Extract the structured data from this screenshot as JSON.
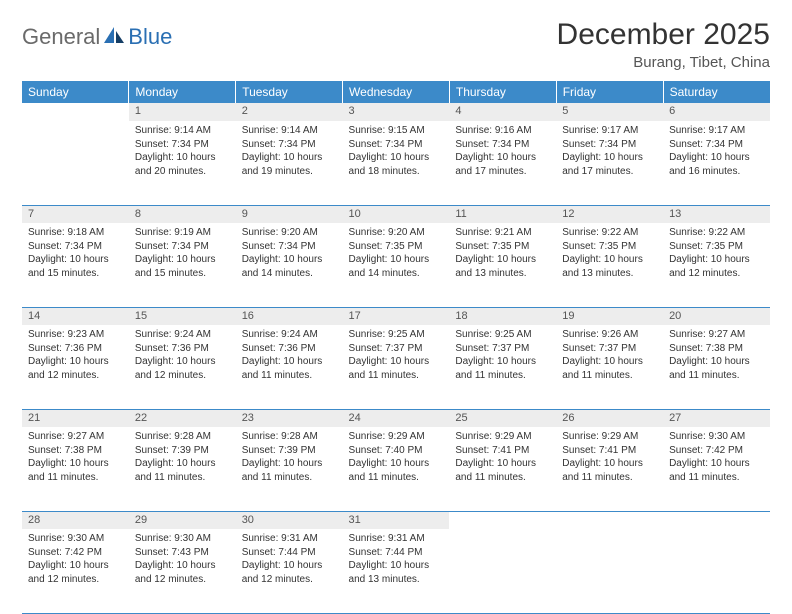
{
  "logo": {
    "part1": "General",
    "part2": "Blue"
  },
  "title": "December 2025",
  "location": "Burang, Tibet, China",
  "colors": {
    "header_bg": "#3c8ac9",
    "daynum_bg": "#ededed",
    "rule": "#3c8ac9",
    "logo_gray": "#6a6a6a",
    "logo_blue": "#2a6fb3"
  },
  "weekdays": [
    "Sunday",
    "Monday",
    "Tuesday",
    "Wednesday",
    "Thursday",
    "Friday",
    "Saturday"
  ],
  "weeks": [
    [
      null,
      {
        "n": "1",
        "sr": "9:14 AM",
        "ss": "7:34 PM",
        "dl": "10 hours and 20 minutes."
      },
      {
        "n": "2",
        "sr": "9:14 AM",
        "ss": "7:34 PM",
        "dl": "10 hours and 19 minutes."
      },
      {
        "n": "3",
        "sr": "9:15 AM",
        "ss": "7:34 PM",
        "dl": "10 hours and 18 minutes."
      },
      {
        "n": "4",
        "sr": "9:16 AM",
        "ss": "7:34 PM",
        "dl": "10 hours and 17 minutes."
      },
      {
        "n": "5",
        "sr": "9:17 AM",
        "ss": "7:34 PM",
        "dl": "10 hours and 17 minutes."
      },
      {
        "n": "6",
        "sr": "9:17 AM",
        "ss": "7:34 PM",
        "dl": "10 hours and 16 minutes."
      }
    ],
    [
      {
        "n": "7",
        "sr": "9:18 AM",
        "ss": "7:34 PM",
        "dl": "10 hours and 15 minutes."
      },
      {
        "n": "8",
        "sr": "9:19 AM",
        "ss": "7:34 PM",
        "dl": "10 hours and 15 minutes."
      },
      {
        "n": "9",
        "sr": "9:20 AM",
        "ss": "7:34 PM",
        "dl": "10 hours and 14 minutes."
      },
      {
        "n": "10",
        "sr": "9:20 AM",
        "ss": "7:35 PM",
        "dl": "10 hours and 14 minutes."
      },
      {
        "n": "11",
        "sr": "9:21 AM",
        "ss": "7:35 PM",
        "dl": "10 hours and 13 minutes."
      },
      {
        "n": "12",
        "sr": "9:22 AM",
        "ss": "7:35 PM",
        "dl": "10 hours and 13 minutes."
      },
      {
        "n": "13",
        "sr": "9:22 AM",
        "ss": "7:35 PM",
        "dl": "10 hours and 12 minutes."
      }
    ],
    [
      {
        "n": "14",
        "sr": "9:23 AM",
        "ss": "7:36 PM",
        "dl": "10 hours and 12 minutes."
      },
      {
        "n": "15",
        "sr": "9:24 AM",
        "ss": "7:36 PM",
        "dl": "10 hours and 12 minutes."
      },
      {
        "n": "16",
        "sr": "9:24 AM",
        "ss": "7:36 PM",
        "dl": "10 hours and 11 minutes."
      },
      {
        "n": "17",
        "sr": "9:25 AM",
        "ss": "7:37 PM",
        "dl": "10 hours and 11 minutes."
      },
      {
        "n": "18",
        "sr": "9:25 AM",
        "ss": "7:37 PM",
        "dl": "10 hours and 11 minutes."
      },
      {
        "n": "19",
        "sr": "9:26 AM",
        "ss": "7:37 PM",
        "dl": "10 hours and 11 minutes."
      },
      {
        "n": "20",
        "sr": "9:27 AM",
        "ss": "7:38 PM",
        "dl": "10 hours and 11 minutes."
      }
    ],
    [
      {
        "n": "21",
        "sr": "9:27 AM",
        "ss": "7:38 PM",
        "dl": "10 hours and 11 minutes."
      },
      {
        "n": "22",
        "sr": "9:28 AM",
        "ss": "7:39 PM",
        "dl": "10 hours and 11 minutes."
      },
      {
        "n": "23",
        "sr": "9:28 AM",
        "ss": "7:39 PM",
        "dl": "10 hours and 11 minutes."
      },
      {
        "n": "24",
        "sr": "9:29 AM",
        "ss": "7:40 PM",
        "dl": "10 hours and 11 minutes."
      },
      {
        "n": "25",
        "sr": "9:29 AM",
        "ss": "7:41 PM",
        "dl": "10 hours and 11 minutes."
      },
      {
        "n": "26",
        "sr": "9:29 AM",
        "ss": "7:41 PM",
        "dl": "10 hours and 11 minutes."
      },
      {
        "n": "27",
        "sr": "9:30 AM",
        "ss": "7:42 PM",
        "dl": "10 hours and 11 minutes."
      }
    ],
    [
      {
        "n": "28",
        "sr": "9:30 AM",
        "ss": "7:42 PM",
        "dl": "10 hours and 12 minutes."
      },
      {
        "n": "29",
        "sr": "9:30 AM",
        "ss": "7:43 PM",
        "dl": "10 hours and 12 minutes."
      },
      {
        "n": "30",
        "sr": "9:31 AM",
        "ss": "7:44 PM",
        "dl": "10 hours and 12 minutes."
      },
      {
        "n": "31",
        "sr": "9:31 AM",
        "ss": "7:44 PM",
        "dl": "10 hours and 13 minutes."
      },
      null,
      null,
      null
    ]
  ],
  "labels": {
    "sunrise": "Sunrise:",
    "sunset": "Sunset:",
    "daylight": "Daylight:"
  }
}
